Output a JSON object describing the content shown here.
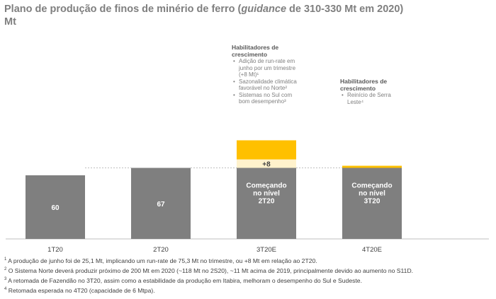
{
  "title": {
    "part1": "Plano de produção de finos de minério de ferro (",
    "italic": "guidance",
    "part2": " de 310-330 Mt em 2020)",
    "line2": "Mt"
  },
  "chart_data": {
    "type": "bar",
    "categories": [
      "1T20",
      "2T20",
      "3T20E",
      "4T20E"
    ],
    "ylim": [
      0,
      140
    ],
    "series": [
      {
        "values": [
          60,
          67,
          67,
          67
        ],
        "color": "#7f7f7f"
      },
      {
        "values": [
          0,
          0,
          8,
          0
        ],
        "color": "#fff2cc"
      },
      {
        "values": [
          0,
          0,
          18,
          2
        ],
        "color": "#ffc000"
      }
    ],
    "bar_labels": [
      "60",
      "67",
      "Começando no nível 2T20",
      "Começando no nível 3T20"
    ],
    "increment_label": "+8"
  },
  "annotations": {
    "q3": {
      "heading": "Habilitadores de crescimento",
      "items": [
        "Adição de run-rate em junho por um trimestre (+8 Mt)¹",
        "Sazonalidade climática favorável no Norte²",
        "Sistemas no Sul com bom desempenho³"
      ]
    },
    "q4": {
      "heading": "Habilitadores de crescimento",
      "items": [
        "Reinício de Serra Leste⁴"
      ]
    }
  },
  "footnotes": [
    {
      "n": "1",
      "text": "A produção de junho foi de 25,1 Mt, implicando um run-rate de 75,3 Mt no trimestre, ou +8 Mt em relação ao 2T20."
    },
    {
      "n": "2",
      "text": "O Sistema Norte deverá produzir próximo de 200 Mt em 2020 (~118 Mt no 2S20), ~11 Mt acima de 2019, principalmente devido ao aumento no S11D."
    },
    {
      "n": "3",
      "text": "A retomada de Fazendão no 3T20, assim como a estabilidade da produção em Itabira, melhoram o desempenho do Sul e Sudeste."
    },
    {
      "n": "4",
      "text": "Retomada esperada no 4T20 (capacidade de 6 Mtpa)."
    }
  ]
}
